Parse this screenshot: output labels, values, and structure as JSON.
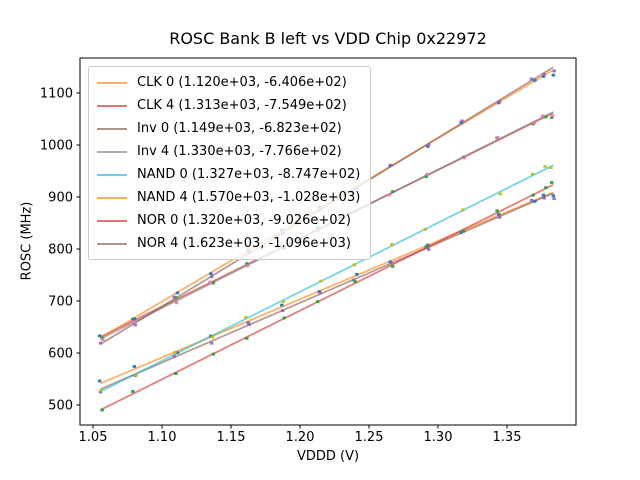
{
  "figure": {
    "background": "#ffffff",
    "spine_color": "#000000",
    "tick_color": "#000000"
  },
  "chart_data": {
    "type": "scatter",
    "title": "ROSC Bank B left vs VDD Chip 0x22972",
    "xlabel": "VDDD (V)",
    "ylabel": "ROSC (MHz)",
    "xlim": [
      1.0406,
      1.4
    ],
    "ylim": [
      461.5,
      1167.3
    ],
    "grid": false,
    "legend_position": "upper left",
    "xticks": [
      1.05,
      1.1,
      1.15,
      1.2,
      1.25,
      1.3,
      1.35
    ],
    "xtick_labels": [
      "1.05",
      "1.10",
      "1.15",
      "1.20",
      "1.25",
      "1.30",
      "1.35"
    ],
    "yticks": [
      500,
      600,
      700,
      800,
      900,
      1000,
      1100
    ],
    "ytick_labels": [
      "500",
      "600",
      "700",
      "800",
      "900",
      "1000",
      "1100"
    ],
    "x": [
      1.056,
      1.08,
      1.11,
      1.136,
      1.162,
      1.188,
      1.214,
      1.24,
      1.266,
      1.292,
      1.318,
      1.344,
      1.369,
      1.377,
      1.383
    ],
    "series": [
      {
        "name": "CLK 0",
        "legend_label": "CLK 0 (1.120e+03, -6.406e+02)",
        "fit_slope": 1120.0,
        "fit_intercept": -640.6,
        "line_color": "#ff7f0e",
        "marker_color": "#1f77b4",
        "values": [
          546.1,
          574.0,
          600.6,
          632.7,
          657.8,
          692.0,
          718.1,
          751.2,
          775.3,
          807.4,
          831.6,
          866.7,
          891.7,
          903.6,
          902.4
        ]
      },
      {
        "name": "CLK 4",
        "legend_label": "CLK 4 (1.313e+03, -7.549e+02)",
        "fit_slope": 1313.0,
        "fit_intercept": -754.9,
        "line_color": "#d62728",
        "marker_color": "#2ca02c",
        "values": [
          628.6,
          665.1,
          706.5,
          734.7,
          771.8,
          801.9,
          841.1,
          872.2,
          910.4,
          939.5,
          976.6,
          1013.8,
          1040.6,
          1054.1,
          1053.0
        ]
      },
      {
        "name": "Inv 0",
        "legend_label": "Inv 0 (1.149e+03, -6.823e+02)",
        "fit_slope": 1149.0,
        "fit_intercept": -682.3,
        "line_color": "#8c564b",
        "marker_color": "#9467bd",
        "values": [
          525.0,
          556.6,
          594.1,
          619.0,
          654.8,
          681.7,
          715.6,
          740.5,
          773.3,
          799.2,
          834.1,
          861.0,
          893.7,
          897.9,
          896.8
        ]
      },
      {
        "name": "Inv 4",
        "legend_label": "Inv 4 (1.330e+03, -7.766e+02)",
        "fit_slope": 1330.0,
        "fit_intercept": -776.6,
        "line_color": "#7f7f7f",
        "marker_color": "#e377c2",
        "values": [
          625.9,
          660.8,
          696.7,
          736.3,
          767.9,
          806.4,
          836.0,
          873.6,
          904.2,
          943.8,
          975.3,
          1013.9,
          1042.2,
          1055.8,
          1055.8
        ]
      },
      {
        "name": "NAND 0",
        "legend_label": "NAND 0 (1.327e+03, -8.747e+02)",
        "fit_slope": 1327.0,
        "fit_intercept": -874.7,
        "line_color": "#17becf",
        "marker_color": "#bcbd22",
        "values": [
          528.6,
          557.5,
          601.3,
          630.8,
          668.3,
          698.8,
          738.3,
          769.8,
          808.3,
          837.8,
          875.3,
          905.8,
          944.0,
          958.6,
          956.5
        ]
      },
      {
        "name": "NAND 4",
        "legend_label": "NAND 4 (1.570e+03, -1.028e+03)",
        "fit_slope": 1570.0,
        "fit_intercept": -1028.0,
        "line_color": "#ff7f0e",
        "marker_color": "#1f77b4",
        "values": [
          632.9,
          665.6,
          715.7,
          752.5,
          798.3,
          836.2,
          881.0,
          916.8,
          960.6,
          997.4,
          1043.3,
          1081.1,
          1124.3,
          1131.9,
          1134.3
        ]
      },
      {
        "name": "NOR 0",
        "legend_label": "NOR 0 (1.320e+03, -9.026e+02)",
        "fit_slope": 1320.0,
        "fit_intercept": -902.6,
        "line_color": "#d62728",
        "marker_color": "#2ca02c",
        "values": [
          490.3,
          526.0,
          560.6,
          597.9,
          628.2,
          667.6,
          698.9,
          737.2,
          766.5,
          803.8,
          834.2,
          873.5,
          903.5,
          918.0,
          928.0
        ]
      },
      {
        "name": "NOR 4",
        "legend_label": "NOR 4 (1.623e+03, -1.096e+03)",
        "fit_slope": 1623.0,
        "fit_intercept": -1096.0,
        "line_color": "#8c564b",
        "marker_color": "#9467bd",
        "values": [
          618.9,
          653.8,
          707.5,
          746.7,
          792.9,
          830.1,
          875.3,
          913.5,
          960.7,
          999.9,
          1046.1,
          1083.3,
          1126.9,
          1135.9,
          1142.6
        ]
      }
    ]
  }
}
